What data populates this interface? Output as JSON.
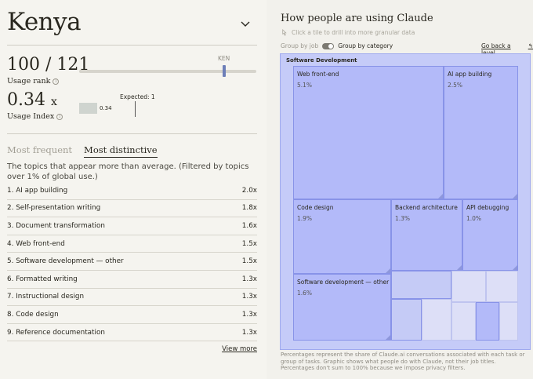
{
  "country": {
    "name": "Kenya"
  },
  "usage_rank": {
    "value": "100 / 121",
    "label": "Usage rank",
    "marker_label": "KEN",
    "rank": 100,
    "total": 121
  },
  "usage_index": {
    "value": "0.34",
    "suffix": "x",
    "label": "Usage Index",
    "bar_label": "0.34",
    "expected_label": "Expected: 1"
  },
  "tabs": [
    {
      "label": "Most frequent"
    },
    {
      "label": "Most distinctive"
    }
  ],
  "description": "The topics that appear more than average. (Filtered by topics over 1% of global use.)",
  "topics": [
    {
      "label": "1. AI app building",
      "value": "2.0x"
    },
    {
      "label": "2. Self-presentation writing",
      "value": "1.8x"
    },
    {
      "label": "3. Document transformation",
      "value": "1.6x"
    },
    {
      "label": "4. Web front-end",
      "value": "1.5x"
    },
    {
      "label": "5. Software development — other",
      "value": "1.5x"
    },
    {
      "label": "6. Formatted writing",
      "value": "1.3x"
    },
    {
      "label": "7. Instructional design",
      "value": "1.3x"
    },
    {
      "label": "8. Code design",
      "value": "1.3x"
    },
    {
      "label": "9. Reference documentation",
      "value": "1.3x"
    }
  ],
  "view_more": "View more",
  "right": {
    "title": "How people are using Claude",
    "hint": "Click a tile to drill into more granular data",
    "toggle_off": "Group by job",
    "toggle_on": "Group by category",
    "back": "Go back a level",
    "treemap_title": "Software Development",
    "tiles": [
      {
        "title": "Web front-end",
        "pct": "5.1%"
      },
      {
        "title": "AI app building",
        "pct": "2.5%"
      },
      {
        "title": "Code design",
        "pct": "1.9%"
      },
      {
        "title": "Backend architecture",
        "pct": "1.3%"
      },
      {
        "title": "API debugging",
        "pct": "1.0%"
      },
      {
        "title": "Software development — other",
        "pct": "1.6%"
      }
    ],
    "footnote": "Percentages represent the share of Claude.ai conversations associated with each task or group of tasks. Graphic shows what people do with Claude, not their job titles. Percentages don't sum to 100% because we impose privacy filters."
  }
}
